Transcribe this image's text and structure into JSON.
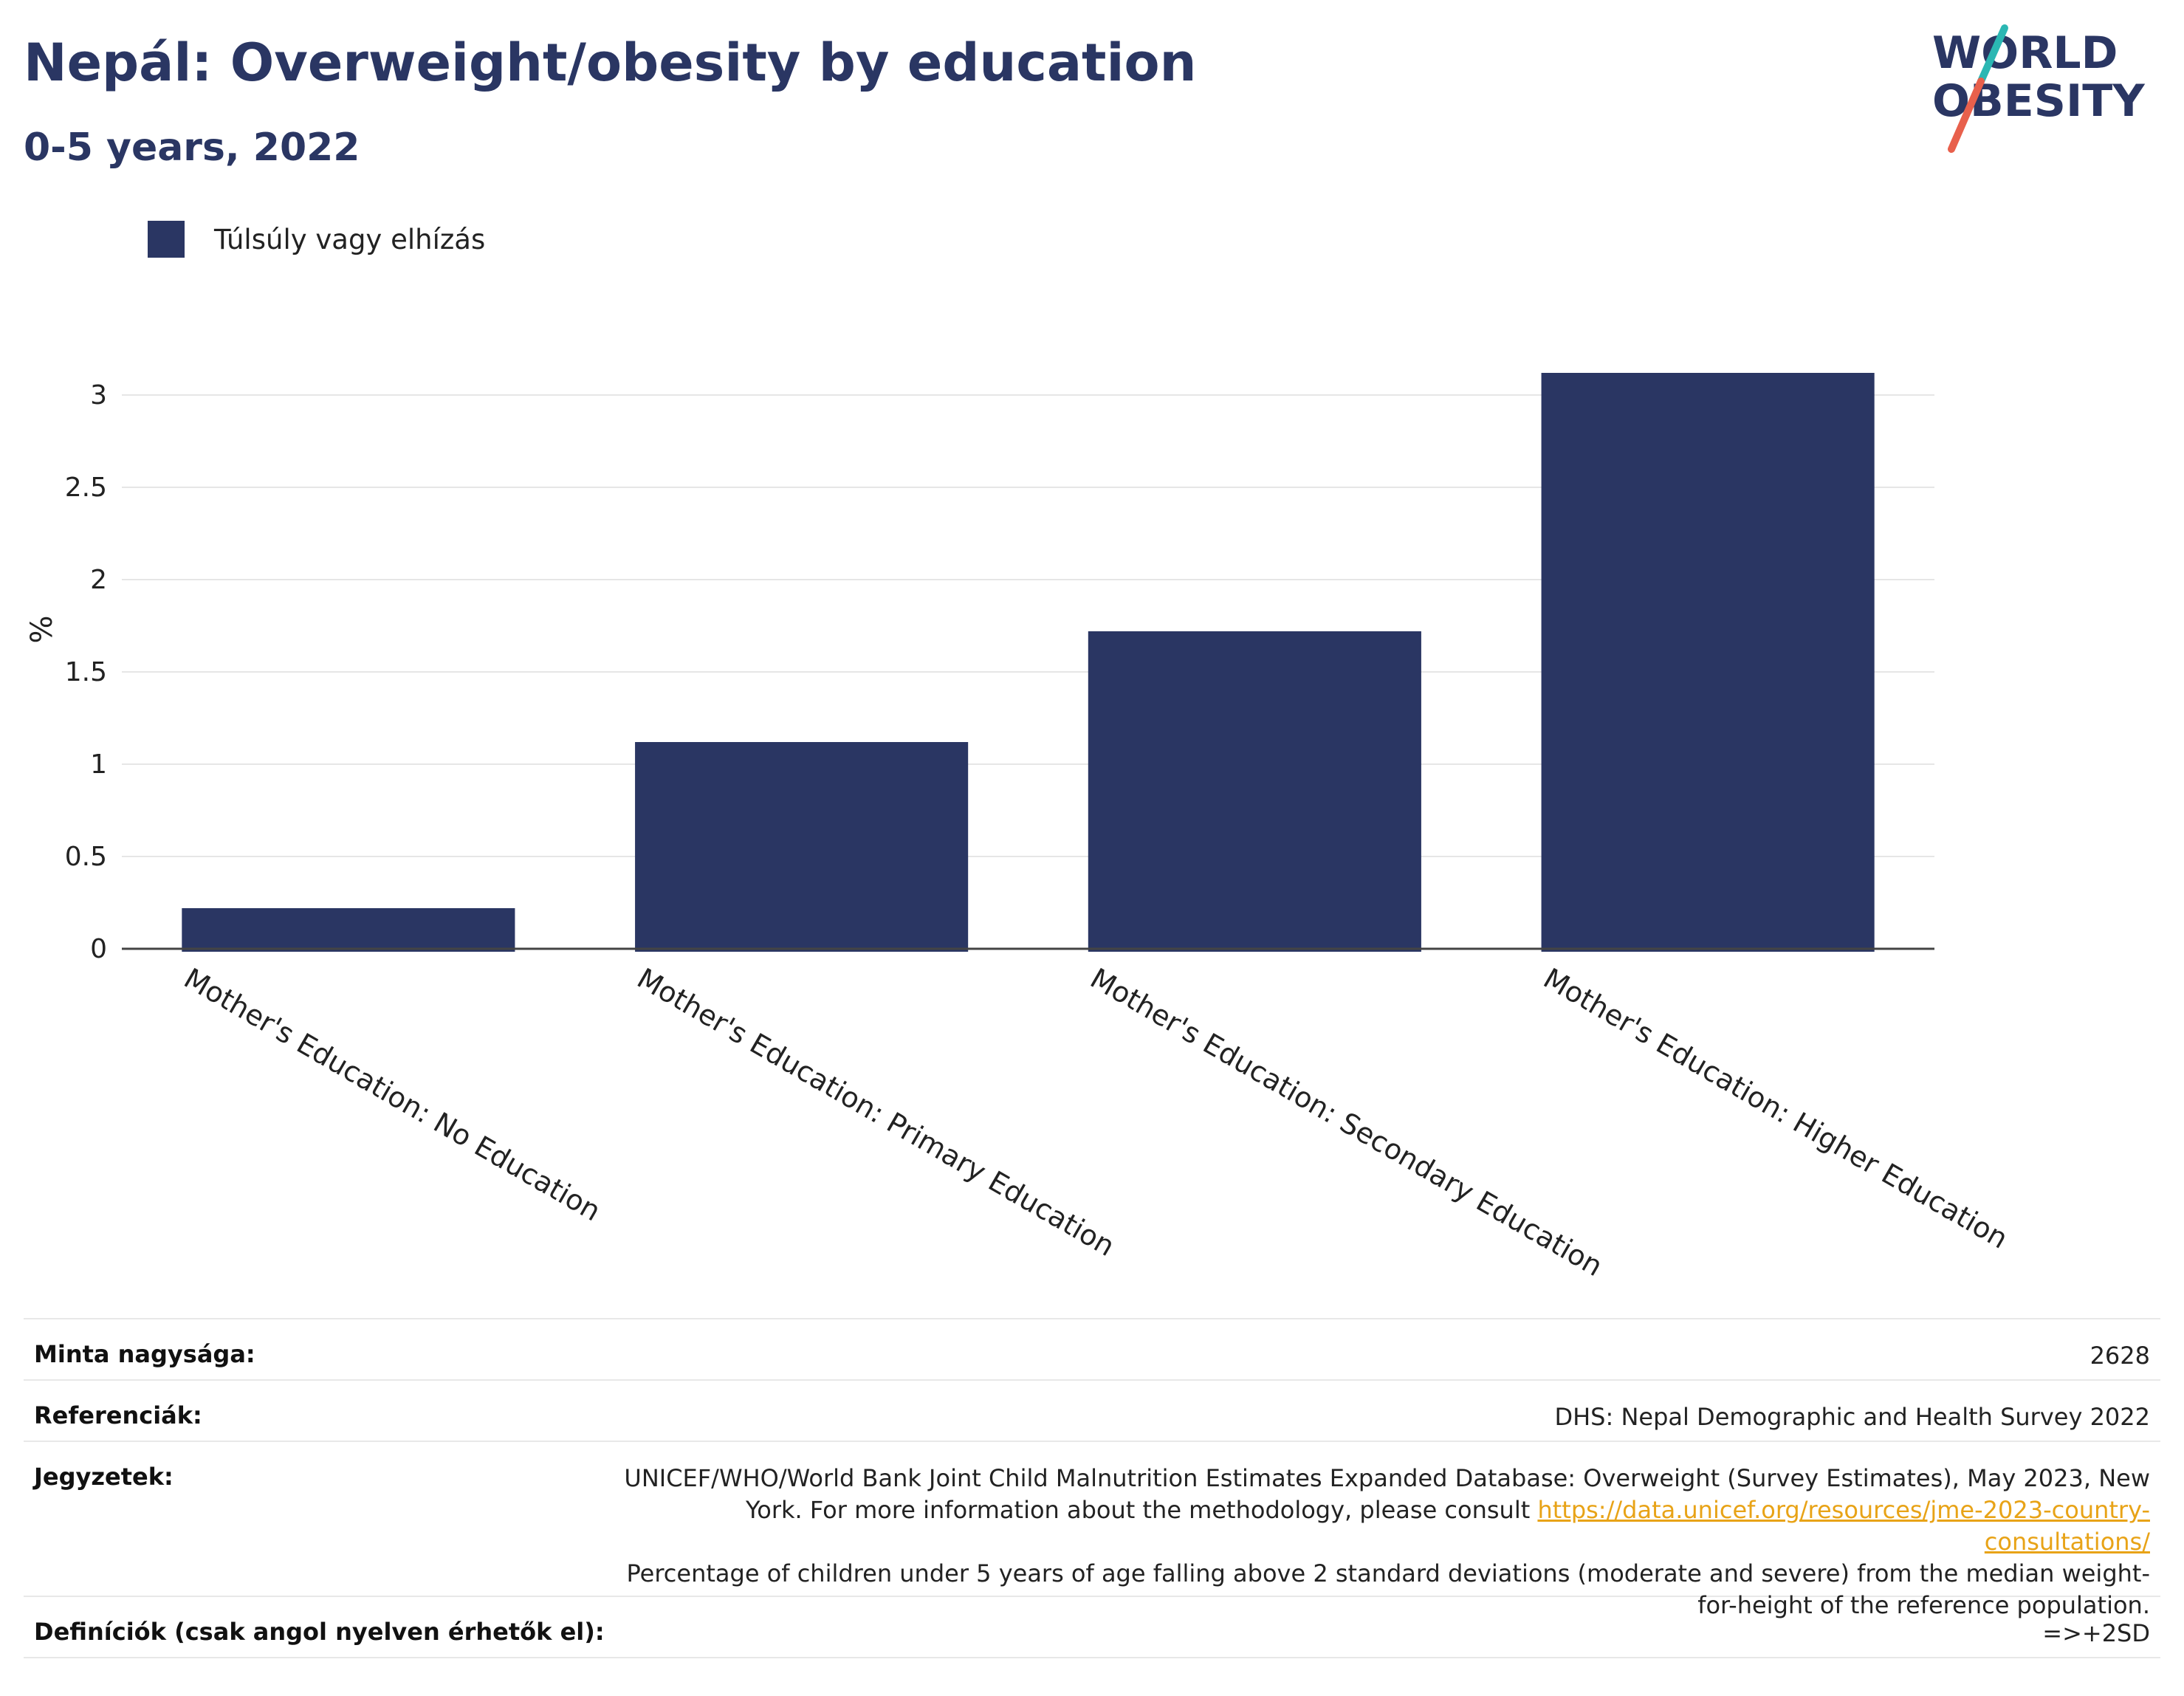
{
  "header": {
    "title": "Nepál: Overweight/obesity by education",
    "subtitle": "0-5 years, 2022"
  },
  "logo": {
    "line1": "WORLD",
    "line2": "OBESITY"
  },
  "chart_data": {
    "type": "bar",
    "categories": [
      "Mother's Education: No Education",
      "Mother's Education: Primary Education",
      "Mother's Education: Secondary Education",
      "Mother's Education: Higher Education"
    ],
    "series": [
      {
        "name": "Túlsúly vagy elhízás",
        "values": [
          0.22,
          1.12,
          1.72,
          3.12
        ],
        "color": "#2a3663"
      }
    ],
    "ylabel": "%",
    "ylim": [
      0,
      3.3
    ],
    "yticks": [
      0,
      0.5,
      1,
      1.5,
      2,
      2.5,
      3
    ],
    "grid": true,
    "legend": "top-left"
  },
  "info": {
    "sample_label": "Minta nagysága:",
    "sample_value": "2628",
    "refs_label": "Referenciák:",
    "refs_value": "DHS: Nepal Demographic and Health Survey 2022",
    "notes_label": "Jegyzetek:",
    "notes_text1": "UNICEF/WHO/World Bank Joint Child Malnutrition Estimates Expanded Database: Overweight (Survey Estimates), May 2023, New York. For more information about the methodology, please consult ",
    "notes_link": "https://data.unicef.org/resources/jme-2023-country-consultations/",
    "notes_text2": "Percentage of children under 5 years of age falling above 2 standard deviations (moderate and severe) from the median weight-for-height of the reference population.",
    "defs_label": "Definíciók (csak angol nyelven érhetők el):",
    "defs_value": "=>+2SD"
  }
}
